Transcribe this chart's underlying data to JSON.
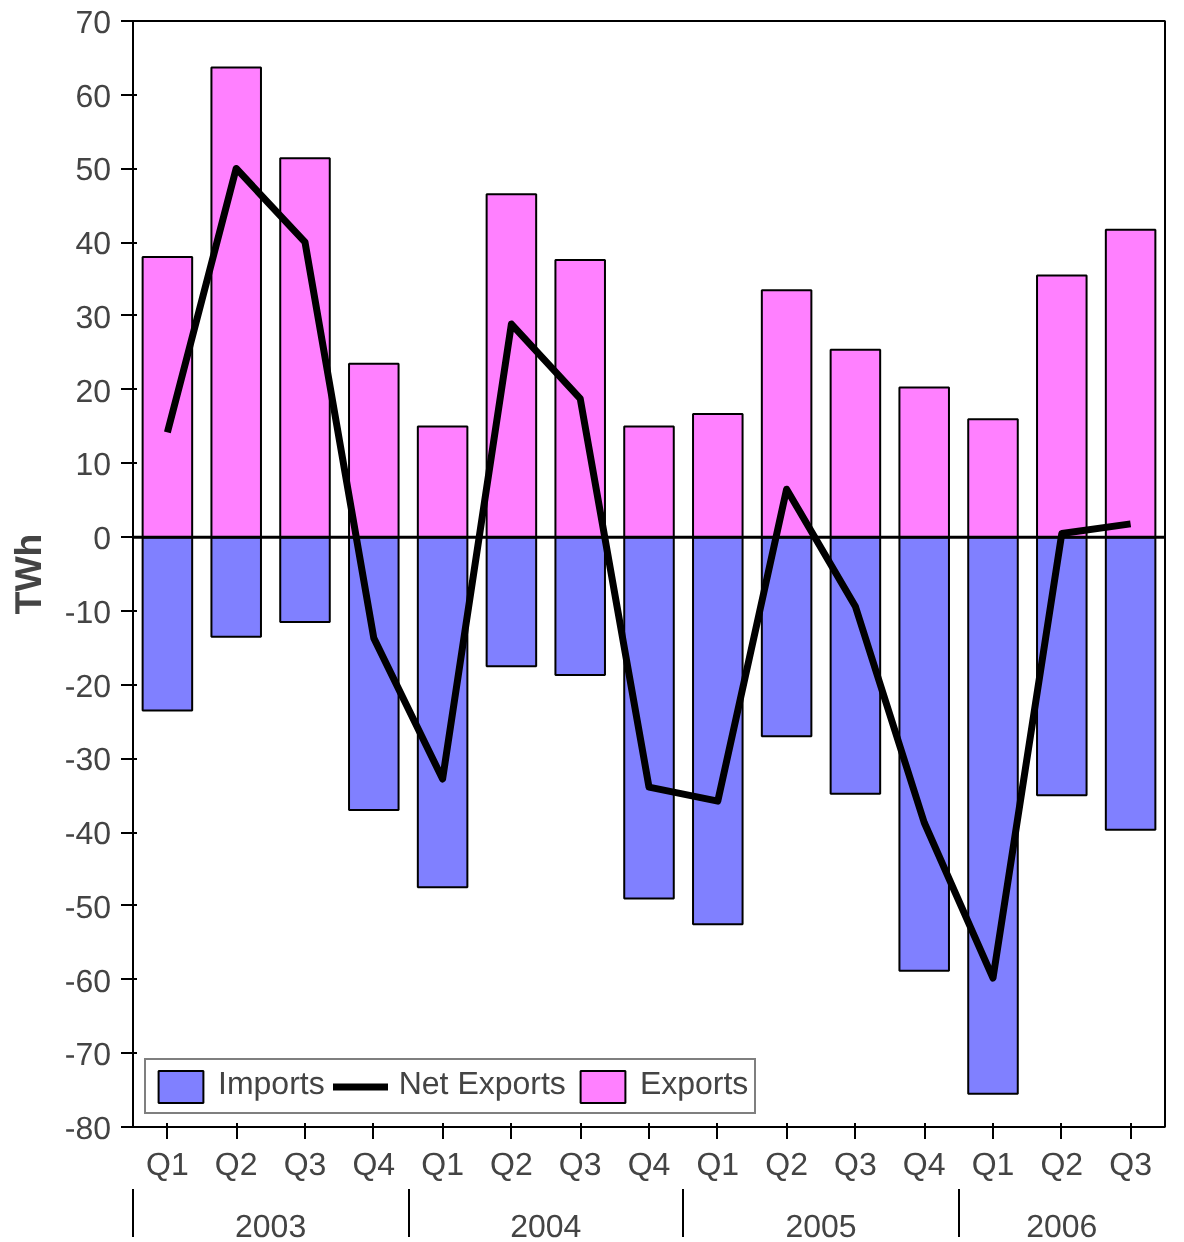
{
  "chart_data": {
    "type": "bar",
    "ylabel": "TWh",
    "categories": [
      "Q1",
      "Q2",
      "Q3",
      "Q4",
      "Q1",
      "Q2",
      "Q3",
      "Q4",
      "Q1",
      "Q2",
      "Q3",
      "Q4",
      "Q1",
      "Q2",
      "Q3"
    ],
    "annotations": [
      "2003",
      "2004",
      "2005",
      "2006"
    ],
    "series": [
      {
        "name": "Imports",
        "color": "#8080ff",
        "values": [
          -23.5,
          -13.5,
          -11.5,
          -37,
          -47.5,
          -17.5,
          -18.7,
          -49,
          -52.5,
          -27,
          -34.8,
          -58.8,
          -75.5,
          -35,
          -39.7
        ]
      },
      {
        "name": "Net Exports",
        "color": "#000000",
        "type": "line",
        "values": [
          14.2,
          50,
          40,
          -13.7,
          -32.8,
          28.9,
          18.8,
          -33.9,
          -35.8,
          6.5,
          -9.4,
          -38.7,
          -59.8,
          0.5,
          1.8
        ]
      },
      {
        "name": "Exports",
        "color": "#ff80ff",
        "values": [
          38,
          63.7,
          51.4,
          23.5,
          15,
          46.5,
          37.6,
          15,
          16.7,
          33.5,
          25.4,
          20.3,
          16,
          35.5,
          41.7
        ]
      }
    ],
    "ylim": [
      -80,
      70
    ],
    "yticks": [
      -80,
      -70,
      -60,
      -50,
      -40,
      -30,
      -20,
      -10,
      0,
      10,
      20,
      30,
      40,
      50,
      60,
      70
    ],
    "stacked": true,
    "ref_lines": [
      {
        "axis": "y",
        "value": 0
      }
    ],
    "grid": false,
    "legend": "bottom left",
    "line_style": "solid",
    "marker": "none"
  }
}
